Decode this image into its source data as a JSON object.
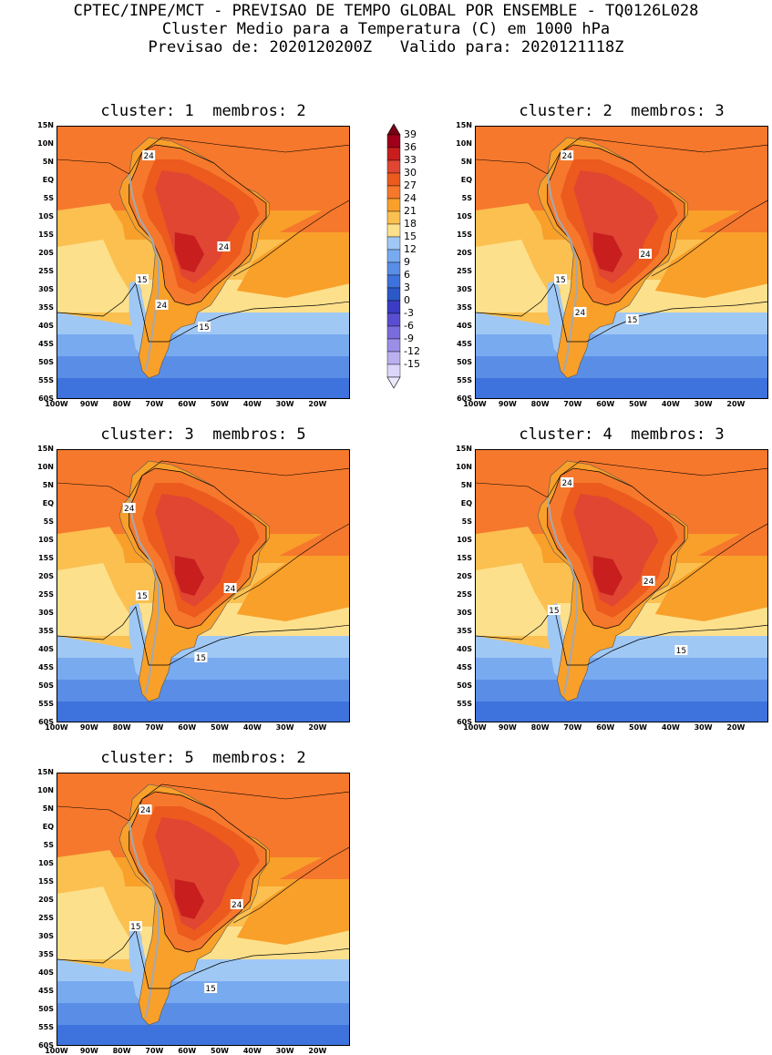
{
  "header": {
    "line1": "CPTEC/INPE/MCT - PREVISAO DE TEMPO GLOBAL POR ENSEMBLE - TQ0126L028",
    "line2": "Cluster Medio para a Temperatura (C) em 1000 hPa",
    "line3": "Previsao de: 2020120200Z   Valido para: 2020121118Z"
  },
  "panels": [
    {
      "title": "cluster: 1  membros: 2",
      "contour_labels": [
        "24",
        "24",
        "24",
        "15",
        "15"
      ]
    },
    {
      "title": "cluster: 2  membros: 3",
      "contour_labels": [
        "24",
        "24",
        "24",
        "15",
        "15"
      ]
    },
    {
      "title": "cluster: 3  membros: 5",
      "contour_labels": [
        "24",
        "24",
        "15",
        "15"
      ]
    },
    {
      "title": "cluster: 4  membros: 3",
      "contour_labels": [
        "24",
        "24",
        "15",
        "15"
      ]
    },
    {
      "title": "cluster: 5  membros: 2",
      "contour_labels": [
        "24",
        "24",
        "15",
        "15"
      ]
    }
  ],
  "lat_labels": [
    "15N",
    "10N",
    "5N",
    "EQ",
    "5S",
    "10S",
    "15S",
    "20S",
    "25S",
    "30S",
    "35S",
    "40S",
    "45S",
    "50S",
    "55S",
    "60S"
  ],
  "lon_labels": [
    "100W",
    "90W",
    "80W",
    "70W",
    "60W",
    "50W",
    "40W",
    "30W",
    "20W"
  ],
  "colorbar": {
    "labels": [
      "39",
      "36",
      "33",
      "30",
      "27",
      "24",
      "21",
      "18",
      "15",
      "12",
      "9",
      "6",
      "3",
      "0",
      "-3",
      "-6",
      "-9",
      "-12",
      "-15"
    ],
    "colors": [
      "#a0001a",
      "#c81e1e",
      "#e04632",
      "#ec5a1e",
      "#f6782c",
      "#f8a02a",
      "#fbc050",
      "#fde08c",
      "#a0c8f4",
      "#78aaf0",
      "#5a8ee6",
      "#3e72dc",
      "#2c58c8",
      "#3a3cc4",
      "#5a4ed0",
      "#7a6cdc",
      "#9a8ee6",
      "#bab0f0",
      "#dcd6fa"
    ],
    "top_color": "#780014",
    "bottom_color": "#ece8fc"
  }
}
